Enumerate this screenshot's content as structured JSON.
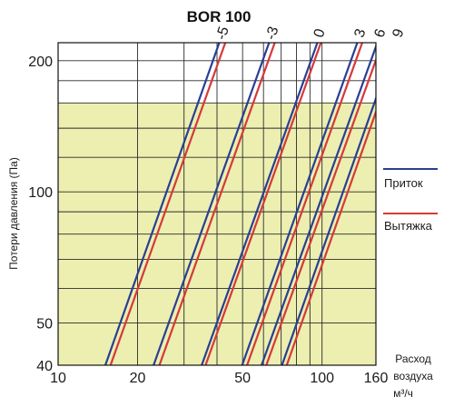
{
  "chart_data": {
    "type": "line",
    "title": "BOR 100",
    "ylabel": "Потери давления (Па)",
    "xlabel": [
      "Расход",
      "воздуха",
      "м³/ч"
    ],
    "x_scale": "log",
    "y_scale": "log",
    "xlim": [
      10,
      160
    ],
    "ylim": [
      40,
      220
    ],
    "x_ticks": [
      10,
      20,
      50,
      100,
      160
    ],
    "x_tick_labels": [
      "10",
      "20",
      "50",
      "100",
      "160"
    ],
    "y_ticks": [
      40,
      50,
      100,
      200
    ],
    "y_tick_labels": [
      "40",
      "50",
      "100",
      "200"
    ],
    "highlight_band": {
      "y_min": 40,
      "y_max": 160,
      "color": "#ecefb0"
    },
    "grid": true,
    "legend": {
      "placement": "right",
      "entries": [
        {
          "label": "Приток",
          "color": "#2a3f93"
        },
        {
          "label": "Вытяжка",
          "color": "#d6393a"
        }
      ]
    },
    "curve_labels": [
      "-5",
      "-3",
      "0",
      "3",
      "6",
      "9"
    ],
    "series": [
      {
        "name": "Приток",
        "setting": "-5",
        "color": "#2a3f93",
        "points": [
          [
            15.1,
            40
          ],
          [
            40.8,
            220
          ]
        ]
      },
      {
        "name": "Вытяжка",
        "setting": "-5",
        "color": "#d6393a",
        "points": [
          [
            15.8,
            40
          ],
          [
            43.0,
            220
          ]
        ]
      },
      {
        "name": "Приток",
        "setting": "-3",
        "color": "#2a3f93",
        "points": [
          [
            23.0,
            40
          ],
          [
            63.0,
            220
          ]
        ]
      },
      {
        "name": "Вытяжка",
        "setting": "-3",
        "color": "#d6393a",
        "points": [
          [
            24.2,
            40
          ],
          [
            66.2,
            220
          ]
        ]
      },
      {
        "name": "Приток",
        "setting": "0",
        "color": "#2a3f93",
        "points": [
          [
            35.0,
            40
          ],
          [
            96.0,
            220
          ]
        ]
      },
      {
        "name": "Вытяжка",
        "setting": "0",
        "color": "#d6393a",
        "points": [
          [
            36.2,
            40
          ],
          [
            99.0,
            220
          ]
        ]
      },
      {
        "name": "Приток",
        "setting": "3",
        "color": "#2a3f93",
        "points": [
          [
            49.8,
            40
          ],
          [
            136.0,
            220
          ]
        ]
      },
      {
        "name": "Вытяжка",
        "setting": "3",
        "color": "#d6393a",
        "points": [
          [
            52.0,
            40
          ],
          [
            142.0,
            220
          ]
        ]
      },
      {
        "name": "Приток",
        "setting": "6",
        "color": "#2a3f93",
        "points": [
          [
            59.0,
            40
          ],
          [
            162.0,
            220
          ]
        ]
      },
      {
        "name": "Вытяжка",
        "setting": "6",
        "color": "#d6393a",
        "points": [
          [
            61.5,
            40
          ],
          [
            169.0,
            220
          ]
        ]
      },
      {
        "name": "Приток",
        "setting": "9",
        "color": "#2a3f93",
        "points": [
          [
            70.5,
            40
          ],
          [
            190.0,
            220
          ]
        ]
      },
      {
        "name": "Вытяжка",
        "setting": "9",
        "color": "#d6393a",
        "points": [
          [
            73.5,
            40
          ],
          [
            198.0,
            220
          ]
        ]
      }
    ]
  },
  "colors": {
    "background": "#ffffff",
    "plot_background": "#ffffff",
    "grid": "#2b2b2b",
    "axis": "#111111"
  }
}
